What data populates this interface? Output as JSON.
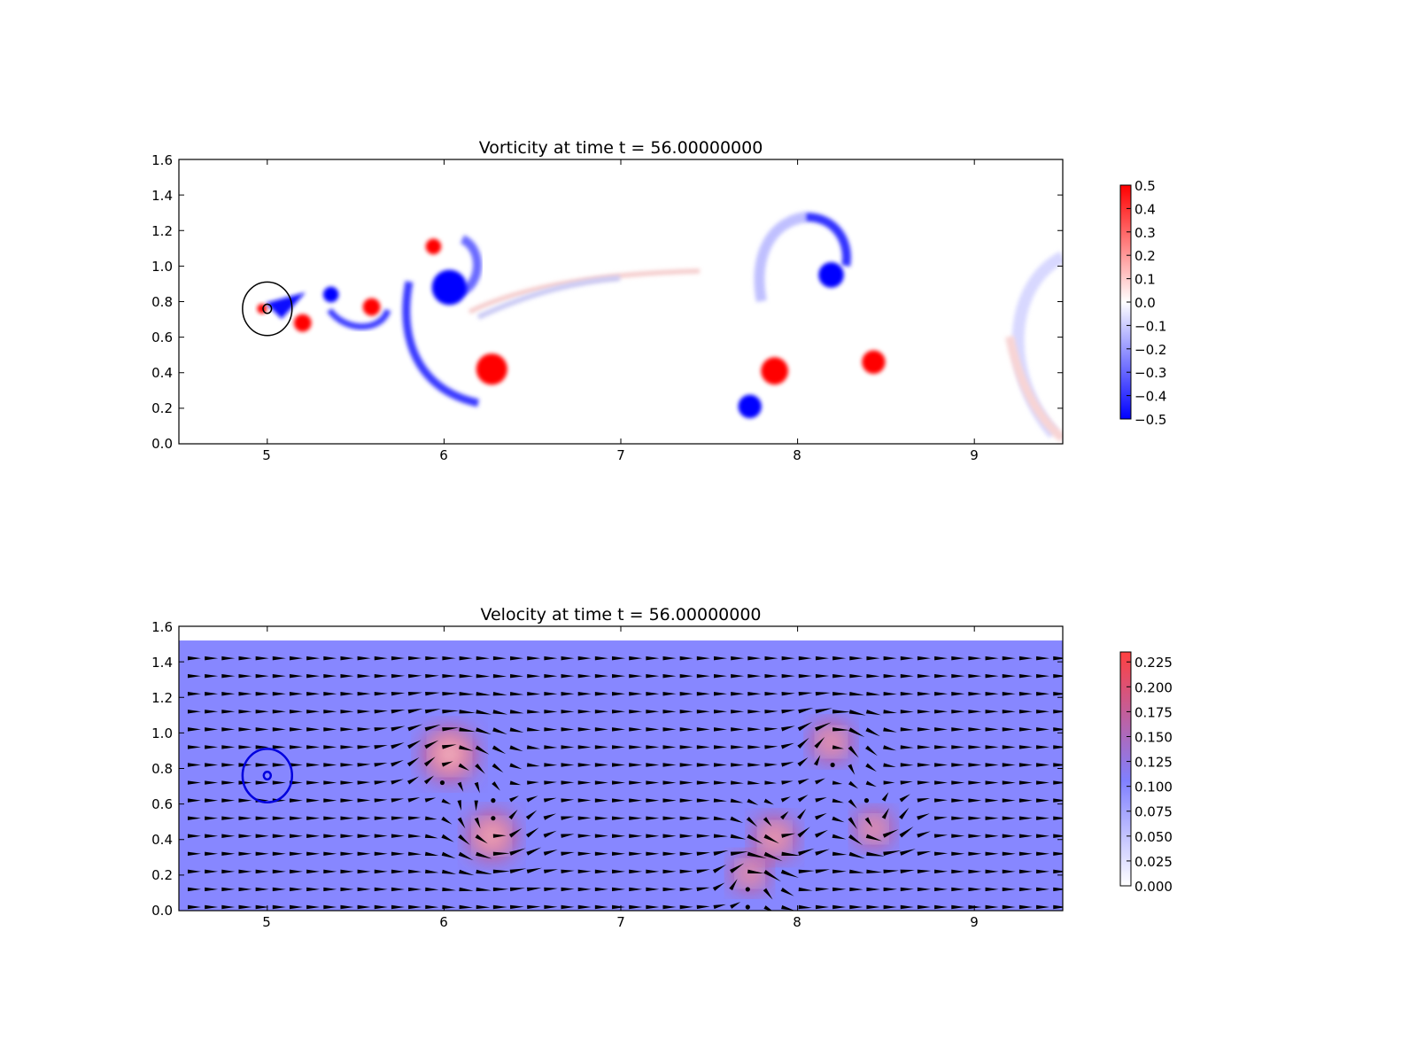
{
  "chart_data": [
    {
      "type": "heatmap",
      "title": "Vorticity at time t =    56.00000000",
      "xlabel": "",
      "ylabel": "",
      "xlim": [
        4.5,
        9.5
      ],
      "ylim": [
        0.0,
        1.6
      ],
      "xticks": [
        "5",
        "6",
        "7",
        "8",
        "9"
      ],
      "yticks": [
        "0.0",
        "0.2",
        "0.4",
        "0.6",
        "0.8",
        "1.0",
        "1.2",
        "1.4",
        "1.6"
      ],
      "grid": false,
      "colormap": {
        "low": "#0000ff",
        "mid": "#ffffff",
        "high": "#ff0000"
      },
      "colorbar": {
        "range": [
          -0.5,
          0.5
        ],
        "ticks": [
          "0.5",
          "0.4",
          "0.3",
          "0.2",
          "0.1",
          "0.0",
          "−0.1",
          "−0.2",
          "−0.3",
          "−0.4",
          "−0.5"
        ]
      },
      "vortices": [
        {
          "x": 4.97,
          "y": 0.76,
          "r": 0.05,
          "value": 0.5
        },
        {
          "x": 5.2,
          "y": 0.68,
          "r": 0.09,
          "value": 0.5
        },
        {
          "x": 5.36,
          "y": 0.84,
          "r": 0.08,
          "value": -0.5
        },
        {
          "x": 5.59,
          "y": 0.77,
          "r": 0.09,
          "value": 0.5
        },
        {
          "x": 5.94,
          "y": 1.11,
          "r": 0.08,
          "value": 0.5
        },
        {
          "x": 6.03,
          "y": 0.88,
          "r": 0.18,
          "value": -0.5
        },
        {
          "x": 6.27,
          "y": 0.42,
          "r": 0.16,
          "value": 0.5
        },
        {
          "x": 7.73,
          "y": 0.21,
          "r": 0.12,
          "value": -0.5
        },
        {
          "x": 7.87,
          "y": 0.41,
          "r": 0.14,
          "value": 0.5
        },
        {
          "x": 8.19,
          "y": 0.95,
          "r": 0.13,
          "value": -0.5
        },
        {
          "x": 8.43,
          "y": 0.46,
          "r": 0.12,
          "value": 0.5
        }
      ],
      "circles": [
        {
          "x": 5.0,
          "y": 0.76,
          "r": 0.35,
          "color": "#000000"
        },
        {
          "x": 5.0,
          "y": 0.76,
          "r": 0.06,
          "color": "#000000"
        }
      ]
    },
    {
      "type": "heatmap",
      "title": "Velocity at time t =    56.00000000",
      "xlabel": "",
      "ylabel": "",
      "xlim": [
        4.5,
        9.5
      ],
      "ylim": [
        0.0,
        1.6
      ],
      "field_ylim": [
        0.0,
        1.52
      ],
      "xticks": [
        "5",
        "6",
        "7",
        "8",
        "9"
      ],
      "yticks": [
        "0.0",
        "0.2",
        "0.4",
        "0.6",
        "0.8",
        "1.0",
        "1.2",
        "1.4",
        "1.6"
      ],
      "grid": false,
      "colormap": {
        "low": "#ffffff",
        "mid": "#8080ff",
        "high": "#ff4040"
      },
      "background_speed": 0.1,
      "colorbar": {
        "range": [
          0.0,
          0.235
        ],
        "ticks": [
          "0.225",
          "0.200",
          "0.175",
          "0.150",
          "0.125",
          "0.100",
          "0.075",
          "0.050",
          "0.025",
          "0.000"
        ]
      },
      "vortices": [
        {
          "x": 6.03,
          "y": 0.88,
          "r": 0.18,
          "sense": -1
        },
        {
          "x": 6.27,
          "y": 0.42,
          "r": 0.16,
          "sense": 1
        },
        {
          "x": 7.73,
          "y": 0.21,
          "r": 0.12,
          "sense": -1
        },
        {
          "x": 7.87,
          "y": 0.41,
          "r": 0.14,
          "sense": 1
        },
        {
          "x": 8.19,
          "y": 0.95,
          "r": 0.13,
          "sense": -1
        },
        {
          "x": 8.43,
          "y": 0.46,
          "r": 0.12,
          "sense": 1
        }
      ],
      "circles": [
        {
          "x": 5.0,
          "y": 0.76,
          "r": 0.35,
          "color": "#0000dd"
        },
        {
          "x": 5.0,
          "y": 0.76,
          "r": 0.05,
          "color": "#0000dd"
        }
      ]
    }
  ]
}
